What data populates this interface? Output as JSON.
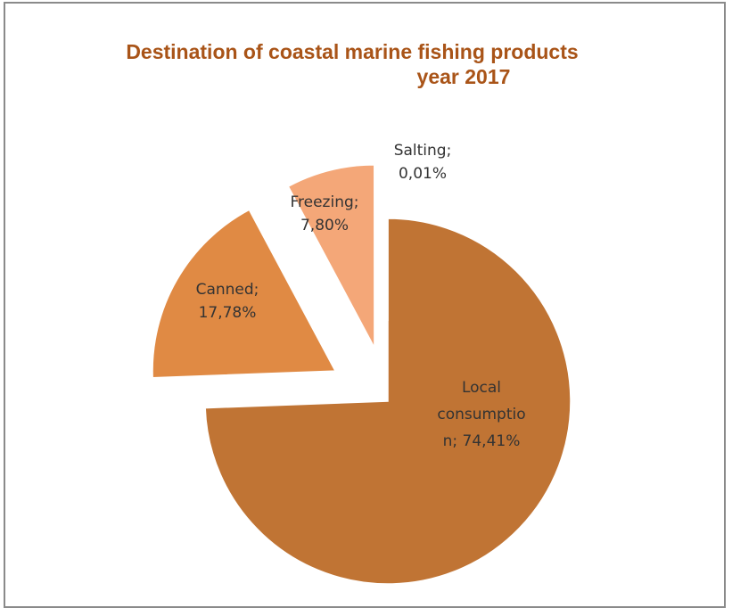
{
  "chart_data": {
    "type": "pie",
    "title_line1": "Destination of coastal marine fishing products",
    "title_line2": "year 2017",
    "slices": [
      {
        "name": "Local consumption",
        "value": 74.41,
        "color": "#c07434",
        "label_lines": [
          "Local",
          "consumptio",
          "n; 74,41%"
        ]
      },
      {
        "name": "Canned",
        "value": 17.78,
        "color": "#e08a44",
        "label_lines": [
          "Canned;",
          "17,78%"
        ]
      },
      {
        "name": "Freezing",
        "value": 7.8,
        "color": "#f4a778",
        "label_lines": [
          "Freezing;",
          "7,80%"
        ]
      },
      {
        "name": "Salting",
        "value": 0.01,
        "color": "#f6b491",
        "label_lines": [
          "Salting;",
          "0,01%"
        ]
      }
    ],
    "start_angle_deg": 0,
    "exploded": true,
    "legend": "none"
  }
}
